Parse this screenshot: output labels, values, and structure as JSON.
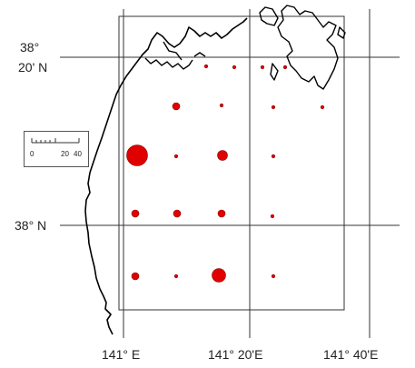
{
  "labels": {
    "lat_38_20_deg": "38°",
    "lat_38_20_min": "20' N",
    "lat_38": "38°  N",
    "lon_141": "141°  E",
    "lon_141_20": "141°  20'E",
    "lon_141_40": "141°  40'E"
  },
  "scale_bar": {
    "ticks": [
      "0",
      "20",
      "40"
    ]
  },
  "colors": {
    "marker": "#e00000",
    "marker_stroke": "#8a0000",
    "coast": "#000000",
    "grid": "#333333"
  },
  "stations": [
    {
      "id": "s1",
      "relative_size": "small"
    },
    {
      "id": "s2",
      "relative_size": "small"
    },
    {
      "id": "s3",
      "relative_size": "small"
    },
    {
      "id": "s4",
      "relative_size": "small"
    },
    {
      "id": "s5",
      "relative_size": "medium"
    },
    {
      "id": "s6",
      "relative_size": "small"
    },
    {
      "id": "s7",
      "relative_size": "small"
    },
    {
      "id": "s8",
      "relative_size": "small"
    },
    {
      "id": "s9",
      "relative_size": "very-large"
    },
    {
      "id": "s10",
      "relative_size": "small"
    },
    {
      "id": "s11",
      "relative_size": "medium-large"
    },
    {
      "id": "s12",
      "relative_size": "small"
    },
    {
      "id": "s13",
      "relative_size": "medium"
    },
    {
      "id": "s14",
      "relative_size": "medium"
    },
    {
      "id": "s15",
      "relative_size": "medium"
    },
    {
      "id": "s16",
      "relative_size": "small"
    },
    {
      "id": "s17",
      "relative_size": "medium"
    },
    {
      "id": "s18",
      "relative_size": "small"
    },
    {
      "id": "s19",
      "relative_size": "large"
    },
    {
      "id": "s20",
      "relative_size": "small"
    }
  ]
}
